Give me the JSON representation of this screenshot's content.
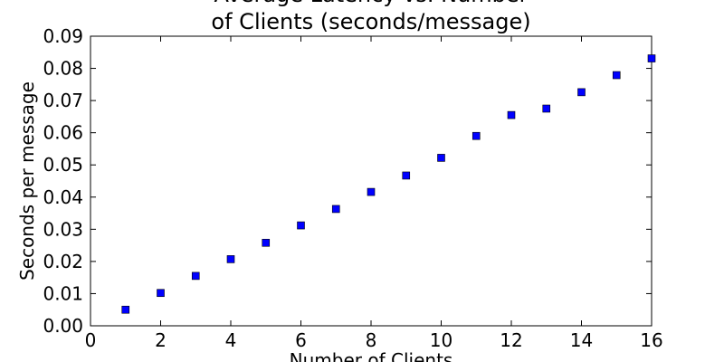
{
  "chart_data": {
    "type": "scatter",
    "title_lines": [
      "Average Latency vs. Number",
      "of Clients (seconds/message)"
    ],
    "xlabel": "Number of Clients",
    "ylabel": "Seconds per message",
    "xlim": [
      0,
      16
    ],
    "ylim": [
      0,
      0.09
    ],
    "x_ticks": [
      "0",
      "2",
      "4",
      "6",
      "8",
      "10",
      "12",
      "14",
      "16"
    ],
    "y_ticks": [
      "0.00",
      "0.01",
      "0.02",
      "0.03",
      "0.04",
      "0.05",
      "0.06",
      "0.07",
      "0.08",
      "0.09"
    ],
    "grid": false,
    "marker": "square",
    "marker_color": "#0000ff",
    "series": [
      {
        "x": [
          1,
          2,
          3,
          4,
          5,
          6,
          7,
          8,
          9,
          10,
          11,
          12,
          13,
          14,
          15,
          16
        ],
        "y": [
          0.005,
          0.0102,
          0.0155,
          0.0207,
          0.0258,
          0.0312,
          0.0363,
          0.0416,
          0.0467,
          0.0522,
          0.059,
          0.0655,
          0.0675,
          0.0726,
          0.0779,
          0.0831
        ]
      }
    ]
  }
}
